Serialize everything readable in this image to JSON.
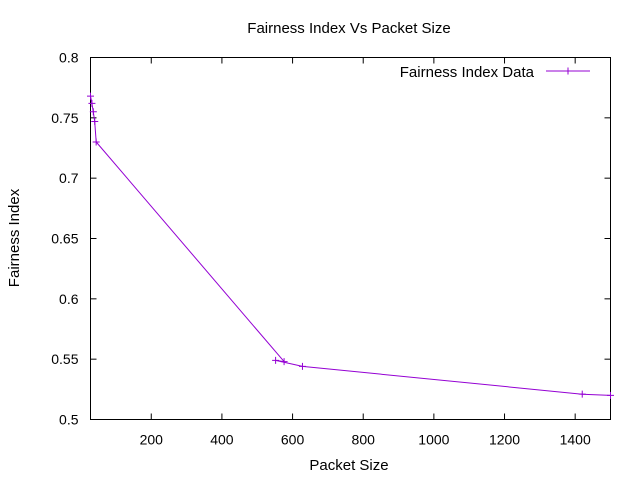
{
  "chart_data": {
    "type": "line",
    "title": "Fairness Index Vs Packet Size",
    "xlabel": "Packet Size",
    "ylabel": "Fairness Index",
    "xlim": [
      28,
      1500
    ],
    "ylim": [
      0.5,
      0.8
    ],
    "xticks": [
      200,
      400,
      600,
      800,
      1000,
      1200,
      1400
    ],
    "xtick_labels": [
      "200",
      "400",
      "600",
      "800",
      "1000",
      "1200",
      "1400"
    ],
    "yticks": [
      0.5,
      0.55,
      0.6,
      0.65,
      0.7,
      0.75,
      0.8
    ],
    "ytick_labels": [
      "0.5",
      "0.55",
      "0.6",
      "0.65",
      "0.7",
      "0.75",
      "0.8"
    ],
    "grid": false,
    "legend_position": "top-right",
    "series": [
      {
        "name": "Fairness Index Data",
        "color": "#9400d3",
        "marker": "plus",
        "x": [
          28,
          32,
          36,
          40,
          44,
          576,
          552,
          628,
          1420,
          1500
        ],
        "y": [
          0.768,
          0.762,
          0.755,
          0.747,
          0.73,
          0.548,
          0.549,
          0.544,
          0.521,
          0.52
        ]
      }
    ]
  }
}
